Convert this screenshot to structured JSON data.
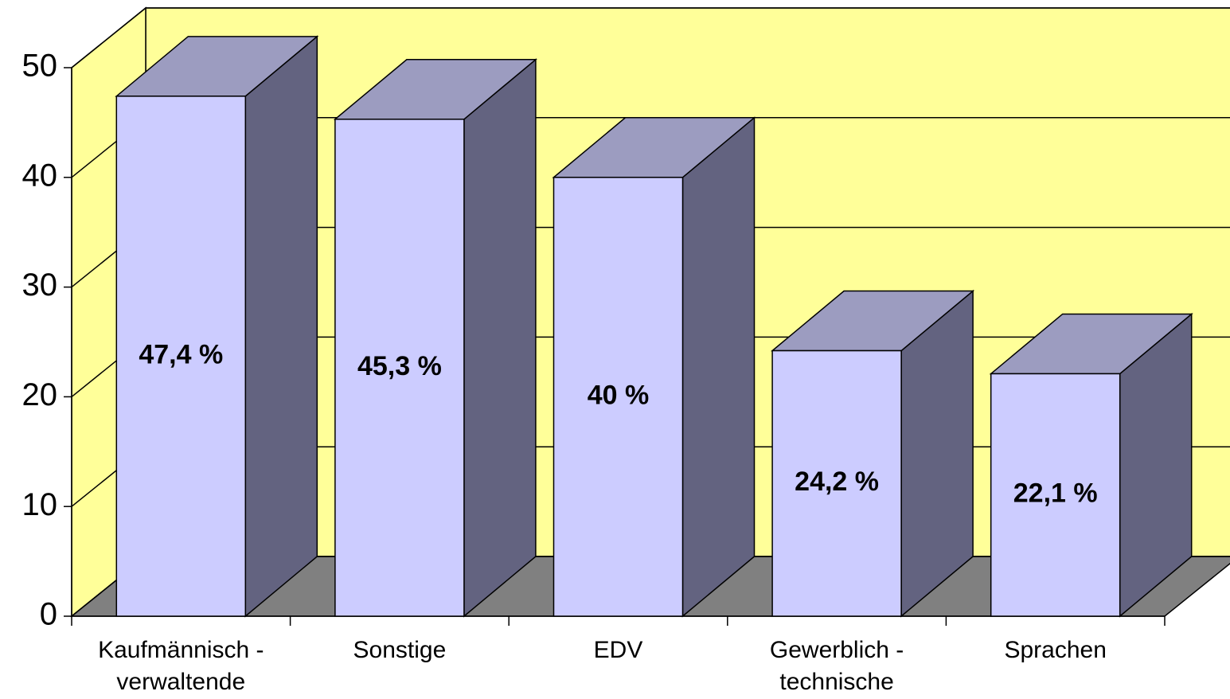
{
  "chart_data": {
    "type": "bar3d",
    "categories": [
      "Kaufmännisch -\nverwaltende",
      "Sonstige",
      "EDV",
      "Gewerblich -\ntechnische",
      "Sprachen"
    ],
    "values": [
      47.4,
      45.3,
      40,
      24.2,
      22.1
    ],
    "value_labels": [
      "47,4 %",
      "45,3 %",
      "40 %",
      "24,2 %",
      "22,1 %"
    ],
    "colors": {
      "front": "#ccccff",
      "top": "#9c9cc0",
      "side": "#636380",
      "wall": "#ffff99",
      "floor": "#808080"
    },
    "ylim": [
      0,
      50
    ],
    "yticks": [
      0,
      10,
      20,
      30,
      40,
      50
    ],
    "grid": true
  }
}
